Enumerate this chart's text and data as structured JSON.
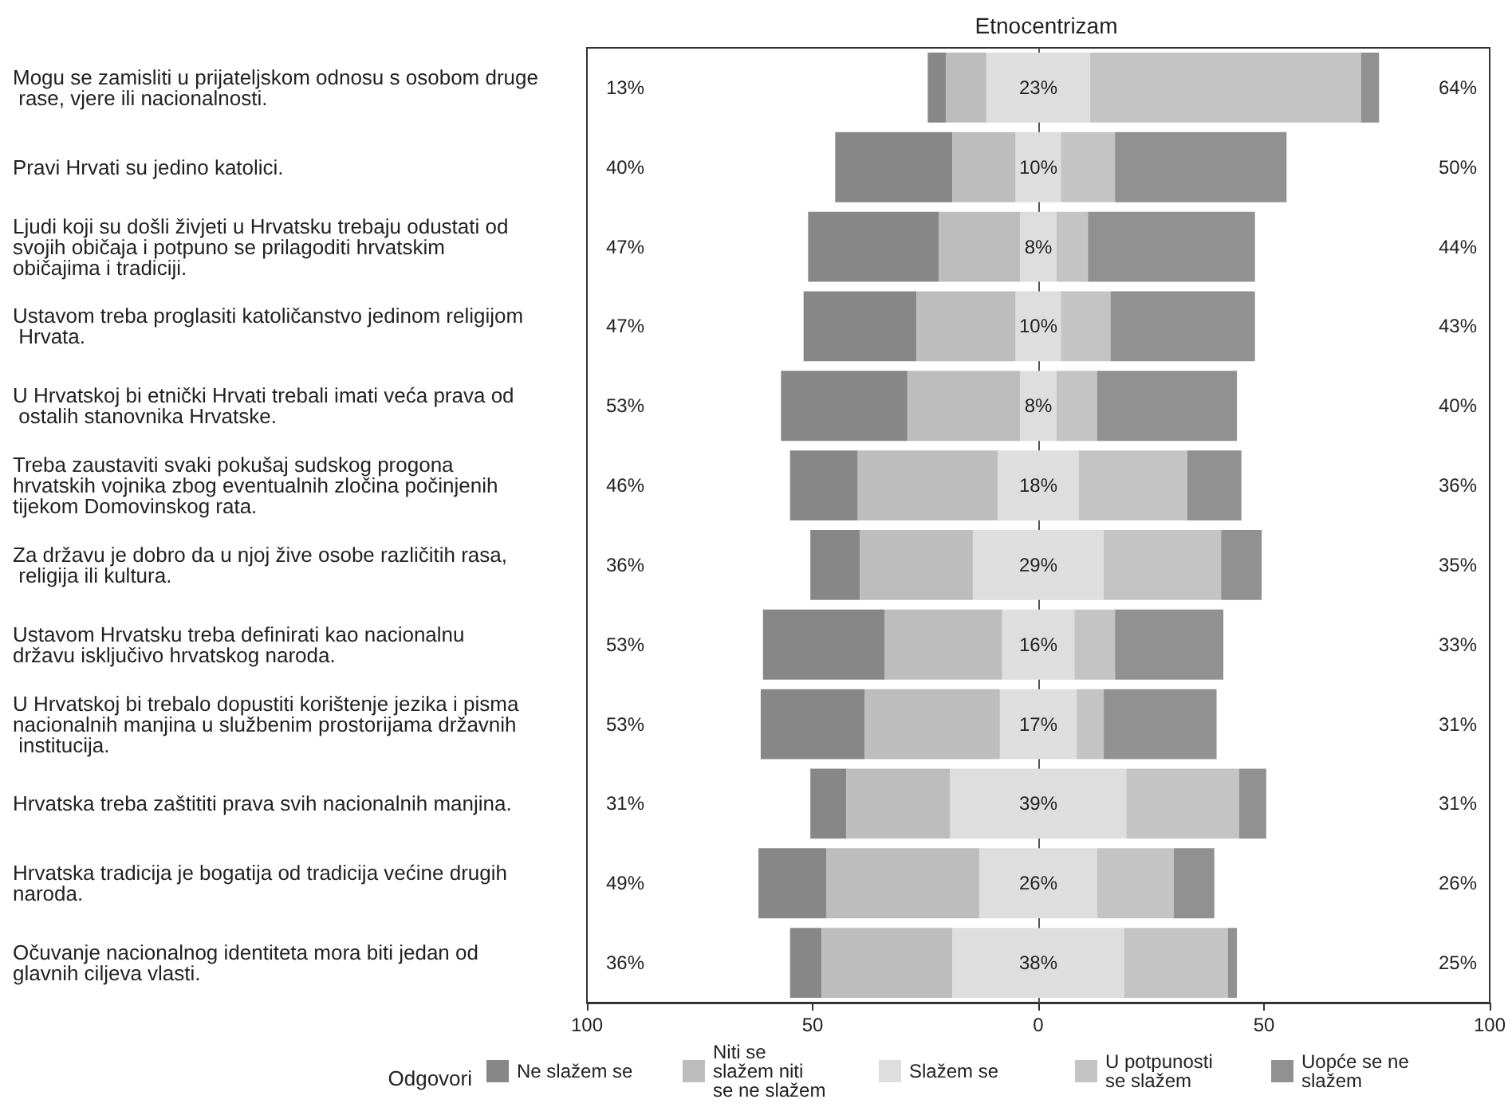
{
  "chart_data": {
    "type": "bar",
    "orientation": "horizontal",
    "title": "Etnocentrizam",
    "legend_title": "Odgovori",
    "legend": "bottom",
    "categories": [
      "Mogu se zamisliti u prijateljskom odnosu s osobom druge rase, vjere ili nacionalnosti.",
      "Pravi Hrvati su jedino katolici.",
      "Ljudi koji su došli živjeti u Hrvatsku trebaju odustati od svojih običaja i potpuno se prilagoditi hrvatskim običajima i tradiciji.",
      "Ustavom treba proglasiti katoličanstvo jedinom religijom Hrvata.",
      "U Hrvatskoj bi etnički Hrvati trebali imati veća prava od ostalih stanovnika Hrvatske.",
      "Treba zaustaviti svaki pokušaj sudskog progona hrvatskih vojnika zbog eventualnih zločina počinjenih tijekom Domovinskog rata.",
      "Za državu je dobro da u njoj žive osobe različitih rasa, religija ili kultura.",
      "Ustavom Hrvatsku treba definirati kao nacionalnu državu isključivo hrvatskog naroda.",
      "U Hrvatskoj bi trebalo dopustiti korištenje jezika i pisma nacionalnih manjina u službenim prostorijama državnih institucija.",
      "Hrvatska treba zaštititi prava svih nacionalnih manjina.",
      "Hrvatska tradicija je bogatija od tradicija većine drugih naroda.",
      "Očuvanje nacionalnog identiteta mora biti jedan od glavnih ciljeva vlasti."
    ],
    "series": [
      {
        "name": "Ne slažem se",
        "color": "#878787",
        "values": [
          4,
          26,
          29,
          25,
          28,
          15,
          11,
          27,
          23,
          8,
          15,
          7
        ],
        "base": [
          -24.5,
          -45,
          -51,
          -52,
          -57,
          -55,
          -50.5,
          -61,
          -61.5,
          -50.5,
          -62,
          -55
        ]
      },
      {
        "name": "Niti se slažem niti se ne slažem",
        "color": "#bdbdbd",
        "values": [
          9,
          14,
          18,
          22,
          25,
          31,
          25,
          26,
          30,
          23,
          34,
          29
        ],
        "base": [
          -20.5,
          -19,
          -22,
          -27,
          -29,
          -40,
          -39.5,
          -34,
          -38.5,
          -42.5,
          -47,
          -48
        ]
      },
      {
        "name": "Slažem se",
        "color": "#dedede",
        "values": [
          23,
          10,
          8,
          10,
          8,
          18,
          29,
          16,
          17,
          39,
          26,
          38
        ],
        "base": [
          -11.5,
          -5,
          -4,
          -5,
          -4,
          -9,
          -14.5,
          -8,
          -8.5,
          -19.5,
          -13,
          -19
        ],
        "value_labels": [
          "23%",
          "10%",
          "8%",
          "10%",
          "8%",
          "18%",
          "29%",
          "16%",
          "17%",
          "39%",
          "26%",
          "38%"
        ]
      },
      {
        "name": "U potpunosti se slažem",
        "color": "#c4c4c4",
        "values": [
          60,
          12,
          7,
          11,
          9,
          24,
          26,
          9,
          6,
          25,
          17,
          23
        ],
        "base": [
          11.5,
          5,
          4,
          5,
          4,
          9,
          14.5,
          8,
          8.5,
          19.5,
          13,
          19
        ]
      },
      {
        "name": "Uopće se ne slažem",
        "color": "#919191",
        "values": [
          4,
          38,
          37,
          32,
          31,
          12,
          9,
          24,
          25,
          6,
          9,
          2
        ],
        "base": [
          71.5,
          17,
          11,
          16,
          13,
          33,
          40.5,
          17,
          14.5,
          44.5,
          30,
          42
        ]
      }
    ],
    "annotations": [
      "13%",
      "40%",
      "47%",
      "47%",
      "53%",
      "46%",
      "36%",
      "53%",
      "53%",
      "31%",
      "49%",
      "36%",
      "64%",
      "50%",
      "44%",
      "43%",
      "40%",
      "36%",
      "35%",
      "33%",
      "31%",
      "31%",
      "26%",
      "25%"
    ],
    "xlim": [
      -100,
      100
    ],
    "xticks": [
      {
        "value": -100,
        "label": "100"
      },
      {
        "value": -50,
        "label": "50"
      },
      0,
      50,
      100
    ],
    "ref_lines": [
      {
        "axis": "x",
        "value": 0,
        "color": "#555555"
      }
    ],
    "grid": false
  }
}
